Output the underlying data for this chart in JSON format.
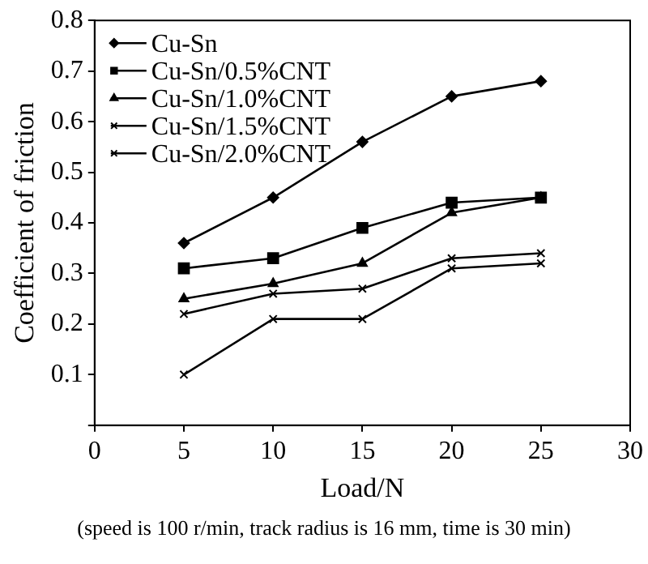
{
  "chart_data": {
    "type": "line",
    "xlabel": "Load/N",
    "ylabel": "Coefficient of friction",
    "x": [
      5,
      10,
      15,
      20,
      25
    ],
    "series": [
      {
        "name": "Cu-Sn",
        "color": "#000000",
        "marker": "diamond",
        "values": [
          0.36,
          0.45,
          0.56,
          0.65,
          0.68
        ]
      },
      {
        "name": "Cu-Sn/0.5%CNT",
        "color": "#000000",
        "marker": "square",
        "values": [
          0.31,
          0.33,
          0.39,
          0.44,
          0.45
        ]
      },
      {
        "name": "Cu-Sn/1.0%CNT",
        "color": "#000000",
        "marker": "triangle",
        "values": [
          0.25,
          0.28,
          0.32,
          0.42,
          0.45
        ]
      },
      {
        "name": "Cu-Sn/1.5%CNT",
        "color": "#000000",
        "marker": "cross",
        "values": [
          0.22,
          0.26,
          0.27,
          0.33,
          0.34
        ]
      },
      {
        "name": "Cu-Sn/2.0%CNT",
        "color": "#000000",
        "marker": "cross",
        "values": [
          0.1,
          0.21,
          0.21,
          0.31,
          0.32
        ]
      }
    ],
    "xlim": [
      0,
      30
    ],
    "xticks": [
      0,
      5,
      10,
      15,
      20,
      25,
      30
    ],
    "ylim": [
      0,
      0.8
    ],
    "yticks": [
      {
        "value": 0,
        "label": null
      },
      0.1,
      0.2,
      0.3,
      0.4,
      0.5,
      0.6,
      0.7,
      0.8
    ],
    "grid": false,
    "legend": "top left",
    "line_style": "solid",
    "annotations": [
      "(speed  is 100 r/min, track radius is 16 mm, time is 30 min)"
    ]
  }
}
